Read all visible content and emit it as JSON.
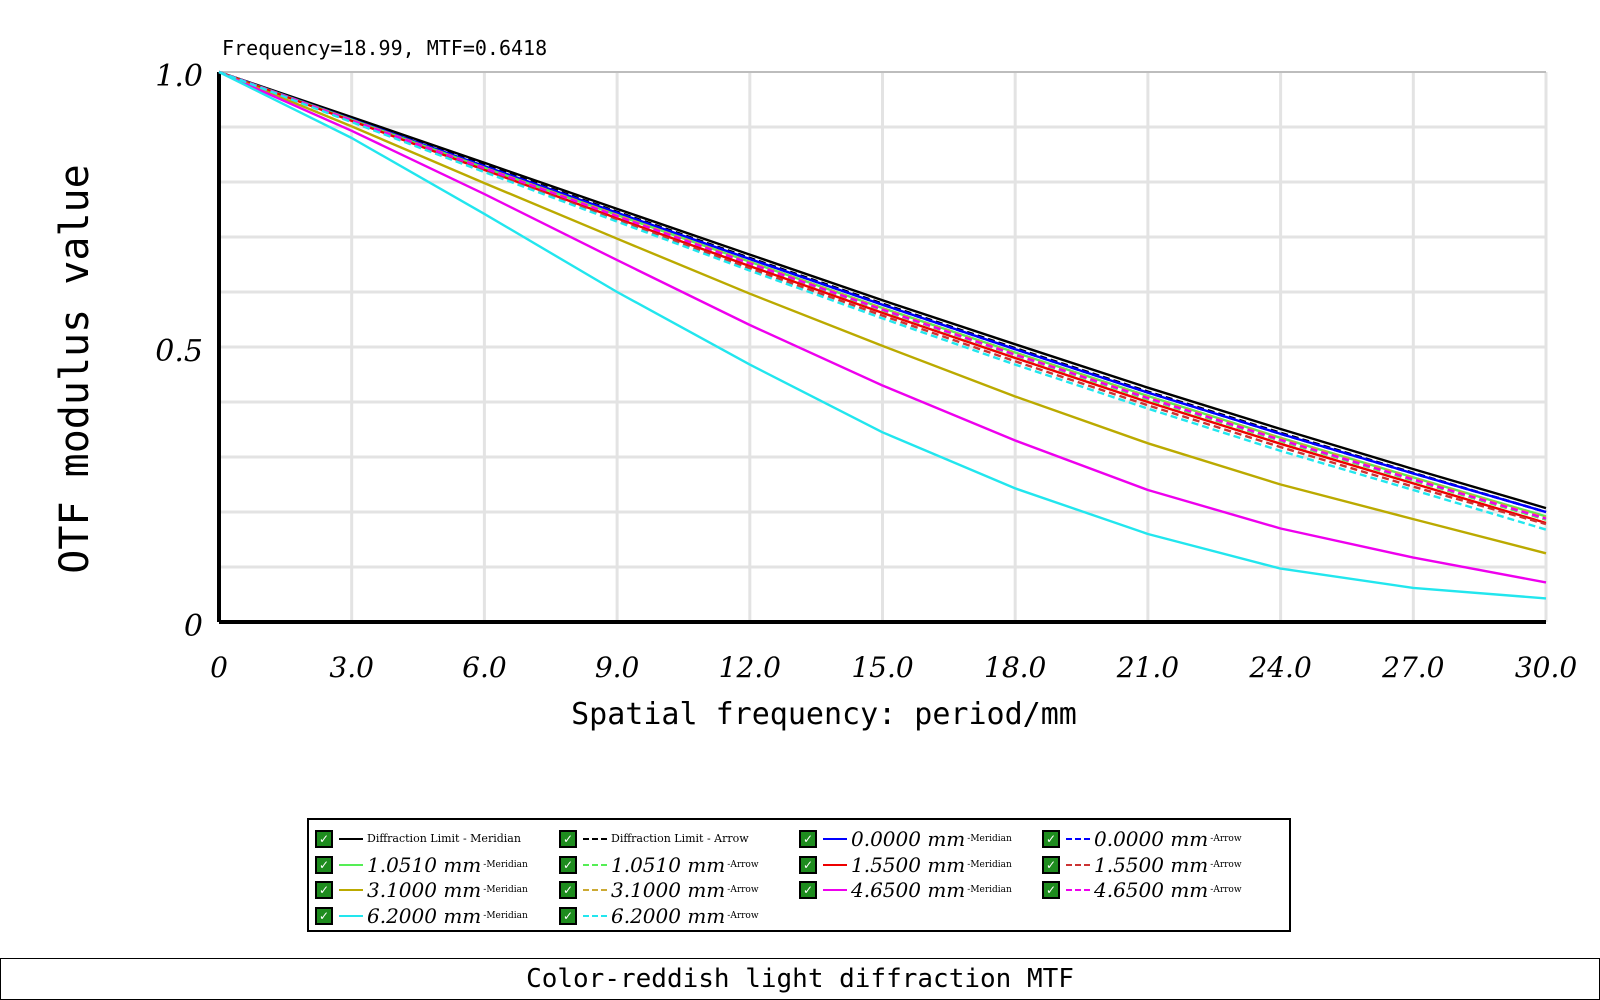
{
  "readout": "Frequency=18.99, MTF=0.6418",
  "caption": "Color-reddish light diffraction MTF",
  "chart_data": {
    "type": "line",
    "xlabel": "Spatial frequency: period/mm",
    "ylabel": "OTF modulus value",
    "xlim": [
      0,
      30
    ],
    "ylim": [
      0,
      1
    ],
    "x_ticks": [
      "0",
      "3.0",
      "6.0",
      "9.0",
      "12.0",
      "15.0",
      "18.0",
      "21.0",
      "24.0",
      "27.0",
      "30.0"
    ],
    "y_ticks": [
      "0",
      "0.5",
      "1.0"
    ],
    "grid": true,
    "legend_position": "bottom",
    "x": [
      0,
      3,
      6,
      9,
      12,
      15,
      18,
      21,
      24,
      27,
      30
    ],
    "series": [
      {
        "name": "Diffraction Limit - Meridian",
        "color": "#000000",
        "dash": false,
        "values": [
          1.0,
          0.918,
          0.835,
          0.751,
          0.668,
          0.585,
          0.505,
          0.426,
          0.351,
          0.278,
          0.207
        ]
      },
      {
        "name": "Diffraction Limit - Arrow",
        "color": "#000000",
        "dash": true,
        "values": [
          1.0,
          0.915,
          0.831,
          0.746,
          0.662,
          0.579,
          0.498,
          0.419,
          0.344,
          0.271,
          0.2
        ]
      },
      {
        "name": "0.0000 mm",
        "color": "#0000ff",
        "dash": false,
        "values": [
          1.0,
          0.914,
          0.829,
          0.744,
          0.66,
          0.577,
          0.496,
          0.417,
          0.342,
          0.27,
          0.2
        ]
      },
      {
        "name": "0.0000 mm",
        "color": "#0000ff",
        "dash": true,
        "values": [
          1.0,
          0.914,
          0.829,
          0.744,
          0.66,
          0.577,
          0.496,
          0.417,
          0.342,
          0.27,
          0.2
        ]
      },
      {
        "name": "1.0510 mm",
        "color": "#55ee55",
        "dash": false,
        "values": [
          1.0,
          0.913,
          0.826,
          0.74,
          0.655,
          0.571,
          0.49,
          0.411,
          0.335,
          0.263,
          0.192
        ]
      },
      {
        "name": "1.0510 mm",
        "color": "#55ee55",
        "dash": true,
        "values": [
          1.0,
          0.912,
          0.824,
          0.737,
          0.651,
          0.567,
          0.485,
          0.405,
          0.329,
          0.257,
          0.186
        ]
      },
      {
        "name": "1.5500 mm",
        "color": "#ee0000",
        "dash": false,
        "values": [
          1.0,
          0.911,
          0.822,
          0.734,
          0.647,
          0.562,
          0.48,
          0.4,
          0.324,
          0.252,
          0.18
        ]
      },
      {
        "name": "1.5500 mm",
        "color": "#cc3333",
        "dash": true,
        "values": [
          1.0,
          0.91,
          0.82,
          0.731,
          0.643,
          0.557,
          0.474,
          0.394,
          0.318,
          0.246,
          0.178
        ]
      },
      {
        "name": "3.1000 mm",
        "color": "#bbaa00",
        "dash": false,
        "values": [
          1.0,
          0.901,
          0.798,
          0.697,
          0.597,
          0.502,
          0.41,
          0.325,
          0.25,
          0.187,
          0.125
        ]
      },
      {
        "name": "3.1000 mm",
        "color": "#ccaa33",
        "dash": true,
        "values": [
          1.0,
          0.913,
          0.826,
          0.74,
          0.654,
          0.57,
          0.488,
          0.409,
          0.334,
          0.262,
          0.19
        ]
      },
      {
        "name": "4.6500 mm",
        "color": "#ee00ee",
        "dash": false,
        "values": [
          1.0,
          0.893,
          0.778,
          0.658,
          0.54,
          0.43,
          0.33,
          0.24,
          0.17,
          0.117,
          0.072
        ]
      },
      {
        "name": "4.6500 mm",
        "color": "#ee00ee",
        "dash": true,
        "values": [
          1.0,
          0.912,
          0.825,
          0.738,
          0.652,
          0.568,
          0.486,
          0.407,
          0.331,
          0.259,
          0.188
        ]
      },
      {
        "name": "6.2000 mm",
        "color": "#22e6ee",
        "dash": false,
        "values": [
          1.0,
          0.88,
          0.742,
          0.6,
          0.468,
          0.345,
          0.243,
          0.16,
          0.097,
          0.062,
          0.043
        ]
      },
      {
        "name": "6.2000 mm",
        "color": "#22e6ee",
        "dash": true,
        "values": [
          1.0,
          0.909,
          0.818,
          0.728,
          0.639,
          0.552,
          0.468,
          0.388,
          0.311,
          0.24,
          0.168
        ]
      }
    ]
  },
  "legend": {
    "items": [
      {
        "label": "Diffraction Limit - Meridian",
        "suffix": "",
        "color": "#000000",
        "dash": false,
        "size": "small"
      },
      {
        "label": "Diffraction Limit - Arrow",
        "suffix": "",
        "color": "#000000",
        "dash": true,
        "size": "small"
      },
      {
        "label": "0.0000 mm",
        "suffix": "-Meridian",
        "color": "#0000ff",
        "dash": false,
        "size": "big"
      },
      {
        "label": "0.0000 mm",
        "suffix": "-Arrow",
        "color": "#0000ff",
        "dash": true,
        "size": "big"
      },
      {
        "label": "1.0510 mm",
        "suffix": "-Meridian",
        "color": "#55ee55",
        "dash": false,
        "size": "big"
      },
      {
        "label": "1.0510 mm",
        "suffix": "-Arrow",
        "color": "#55ee55",
        "dash": true,
        "size": "big"
      },
      {
        "label": "1.5500 mm",
        "suffix": "-Meridian",
        "color": "#ee0000",
        "dash": false,
        "size": "big"
      },
      {
        "label": "1.5500 mm",
        "suffix": "-Arrow",
        "color": "#cc3333",
        "dash": true,
        "size": "big"
      },
      {
        "label": "3.1000 mm",
        "suffix": "-Meridian",
        "color": "#bbaa00",
        "dash": false,
        "size": "big"
      },
      {
        "label": "3.1000 mm",
        "suffix": "-Arrow",
        "color": "#ccaa33",
        "dash": true,
        "size": "big"
      },
      {
        "label": "4.6500 mm",
        "suffix": "-Meridian",
        "color": "#ee00ee",
        "dash": false,
        "size": "big"
      },
      {
        "label": "4.6500 mm",
        "suffix": "-Arrow",
        "color": "#ee00ee",
        "dash": true,
        "size": "big"
      },
      {
        "label": "6.2000 mm",
        "suffix": "-Meridian",
        "color": "#22e6ee",
        "dash": false,
        "size": "big"
      },
      {
        "label": "6.2000 mm",
        "suffix": "-Arrow",
        "color": "#22e6ee",
        "dash": true,
        "size": "big"
      }
    ]
  }
}
